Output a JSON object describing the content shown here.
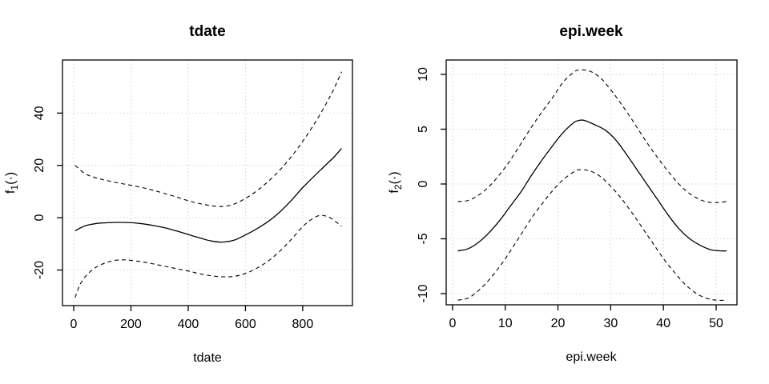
{
  "figure": {
    "background": "#ffffff",
    "line_color": "#000000",
    "grid_color": "#d3d3d3",
    "panel_count": 2
  },
  "chart_data": [
    {
      "type": "line",
      "title": "tdate",
      "xlabel": "tdate",
      "ylabel": {
        "base": "f",
        "sub": "1",
        "suffix": "(·)",
        "text": "f1(·)"
      },
      "xlim": [
        -39.2,
        973.8
      ],
      "ylim": [
        -33.6,
        60.3
      ],
      "xticks": [
        0,
        200,
        400,
        600,
        800
      ],
      "yticks": [
        -20,
        0,
        20,
        40
      ],
      "grid": true,
      "legend": "none",
      "series": [
        {
          "name": "fit",
          "style": "solid",
          "x": [
            5,
            40,
            80,
            120,
            160,
            200,
            240,
            280,
            320,
            360,
            400,
            440,
            480,
            520,
            560,
            600,
            640,
            680,
            720,
            760,
            800,
            840,
            880,
            910,
            936
          ],
          "y": [
            -5.0,
            -3.1,
            -2.2,
            -1.9,
            -1.8,
            -1.9,
            -2.3,
            -3.0,
            -3.9,
            -5.1,
            -6.4,
            -7.7,
            -8.9,
            -9.3,
            -8.6,
            -6.6,
            -4.2,
            -1.4,
            2.2,
            6.6,
            11.5,
            15.9,
            20.1,
            23.3,
            26.5
          ]
        },
        {
          "name": "upper-ci",
          "style": "dashed",
          "x": [
            5,
            40,
            80,
            120,
            160,
            200,
            240,
            280,
            320,
            360,
            400,
            440,
            480,
            520,
            560,
            600,
            640,
            680,
            720,
            760,
            800,
            840,
            880,
            910,
            936
          ],
          "y": [
            20.0,
            16.8,
            15.2,
            14.1,
            13.2,
            12.4,
            11.5,
            10.4,
            9.2,
            7.9,
            6.5,
            5.4,
            4.6,
            4.3,
            5.2,
            7.4,
            10.3,
            13.9,
            18.2,
            23.3,
            29.2,
            35.8,
            43.2,
            49.5,
            55.8
          ]
        },
        {
          "name": "lower-ci",
          "style": "dashed",
          "x": [
            5,
            20,
            40,
            60,
            80,
            110,
            140,
            170,
            200,
            240,
            280,
            320,
            360,
            400,
            440,
            480,
            520,
            560,
            600,
            640,
            680,
            720,
            760,
            800,
            830,
            860,
            890,
            915,
            936
          ],
          "y": [
            -30.5,
            -26.0,
            -22.6,
            -20.4,
            -18.8,
            -17.3,
            -16.4,
            -16.1,
            -16.3,
            -16.9,
            -17.7,
            -18.6,
            -19.5,
            -20.4,
            -21.4,
            -22.2,
            -22.6,
            -22.4,
            -21.3,
            -19.3,
            -16.5,
            -12.8,
            -8.3,
            -3.4,
            -0.7,
            0.9,
            0.3,
            -1.5,
            -3.2
          ]
        }
      ]
    },
    {
      "type": "line",
      "title": "epi.week",
      "xlabel": "epi.week",
      "ylabel": {
        "base": "f",
        "sub": "2",
        "suffix": "(·)",
        "text": "f2(·)"
      },
      "xlim": [
        -1.2,
        53.95
      ],
      "ylim": [
        -11.02,
        11.31
      ],
      "xticks": [
        0,
        10,
        20,
        30,
        40,
        50
      ],
      "yticks": [
        -10,
        -5,
        0,
        5,
        10
      ],
      "grid": true,
      "legend": "none",
      "series": [
        {
          "name": "fit",
          "style": "solid",
          "x": [
            1,
            3,
            5,
            7,
            9,
            11,
            13,
            15,
            17,
            19,
            21,
            23,
            24,
            25,
            27,
            29,
            31,
            33,
            35,
            37,
            39,
            41,
            43,
            45,
            47,
            49,
            51,
            52
          ],
          "y": [
            -6.1,
            -5.9,
            -5.3,
            -4.4,
            -3.3,
            -2.0,
            -0.7,
            0.8,
            2.2,
            3.5,
            4.7,
            5.6,
            5.8,
            5.8,
            5.4,
            4.9,
            4.0,
            2.7,
            1.3,
            -0.1,
            -1.5,
            -2.9,
            -4.1,
            -5.0,
            -5.6,
            -6.0,
            -6.1,
            -6.1
          ]
        },
        {
          "name": "upper-ci",
          "style": "dashed",
          "x": [
            1,
            3,
            5,
            7,
            9,
            11,
            13,
            15,
            17,
            19,
            21,
            23,
            24,
            26,
            28,
            30,
            32,
            34,
            36,
            38,
            40,
            42,
            44,
            46,
            48,
            50,
            52
          ],
          "y": [
            -1.6,
            -1.5,
            -1.0,
            -0.2,
            0.9,
            2.2,
            3.7,
            5.2,
            6.6,
            7.9,
            9.3,
            10.2,
            10.4,
            10.3,
            9.7,
            8.6,
            7.3,
            5.9,
            4.4,
            3.0,
            1.7,
            0.5,
            -0.5,
            -1.2,
            -1.6,
            -1.7,
            -1.6
          ]
        },
        {
          "name": "lower-ci",
          "style": "dashed",
          "x": [
            1,
            3,
            5,
            7,
            9,
            11,
            13,
            15,
            17,
            19,
            21,
            23,
            24,
            26,
            28,
            30,
            32,
            34,
            36,
            38,
            40,
            42,
            44,
            46,
            48,
            50,
            52
          ],
          "y": [
            -10.6,
            -10.4,
            -9.7,
            -8.7,
            -7.5,
            -6.1,
            -4.6,
            -3.1,
            -1.8,
            -0.6,
            0.4,
            1.1,
            1.3,
            1.2,
            0.7,
            -0.2,
            -1.3,
            -2.6,
            -4.0,
            -5.4,
            -6.8,
            -8.0,
            -9.1,
            -9.9,
            -10.4,
            -10.6,
            -10.6
          ]
        }
      ]
    }
  ]
}
